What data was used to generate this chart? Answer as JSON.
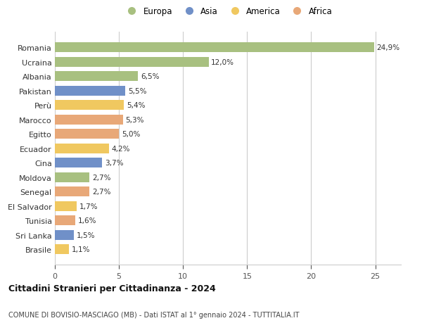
{
  "categories": [
    "Romania",
    "Ucraina",
    "Albania",
    "Pakistan",
    "Perù",
    "Marocco",
    "Egitto",
    "Ecuador",
    "Cina",
    "Moldova",
    "Senegal",
    "El Salvador",
    "Tunisia",
    "Sri Lanka",
    "Brasile"
  ],
  "values": [
    24.9,
    12.0,
    6.5,
    5.5,
    5.4,
    5.3,
    5.0,
    4.2,
    3.7,
    2.7,
    2.7,
    1.7,
    1.6,
    1.5,
    1.1
  ],
  "labels": [
    "24,9%",
    "12,0%",
    "6,5%",
    "5,5%",
    "5,4%",
    "5,3%",
    "5,0%",
    "4,2%",
    "3,7%",
    "2,7%",
    "2,7%",
    "1,7%",
    "1,6%",
    "1,5%",
    "1,1%"
  ],
  "continents": [
    "Europa",
    "Europa",
    "Europa",
    "Asia",
    "America",
    "Africa",
    "Africa",
    "America",
    "Asia",
    "Europa",
    "Africa",
    "America",
    "Africa",
    "Asia",
    "America"
  ],
  "colors": {
    "Europa": "#a8c080",
    "Asia": "#7090c8",
    "America": "#f0c860",
    "Africa": "#e8a878"
  },
  "legend_order": [
    "Europa",
    "Asia",
    "America",
    "Africa"
  ],
  "title": "Cittadini Stranieri per Cittadinanza - 2024",
  "subtitle": "COMUNE DI BOVISIO-MASCIAGO (MB) - Dati ISTAT al 1° gennaio 2024 - TUTTITALIA.IT",
  "xlim": [
    0,
    27
  ],
  "xticks": [
    0,
    5,
    10,
    15,
    20,
    25
  ],
  "background_color": "#ffffff",
  "grid_color": "#cccccc",
  "bar_height": 0.68
}
